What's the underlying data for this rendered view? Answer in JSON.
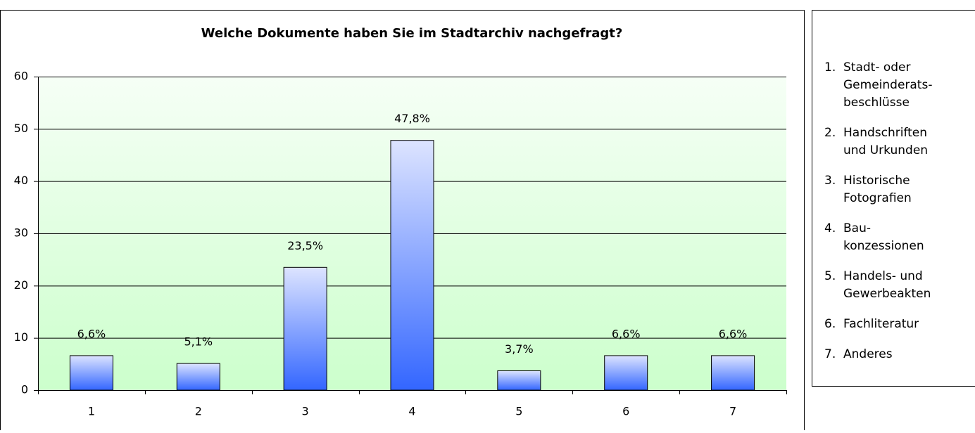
{
  "chart_data": {
    "type": "bar",
    "title": "Welche Dokumente haben Sie im Stadtarchiv nachgefragt?",
    "categories": [
      "1",
      "2",
      "3",
      "4",
      "5",
      "6",
      "7"
    ],
    "values": [
      6.6,
      5.1,
      23.5,
      47.8,
      3.7,
      6.6,
      6.6
    ],
    "value_labels": [
      "6,6%",
      "5,1%",
      "23,5%",
      "47,8%",
      "3,7%",
      "6,6%",
      "6,6%"
    ],
    "color": "#3366ff",
    "ylim": [
      0,
      60
    ],
    "yticks": [
      0,
      10,
      20,
      30,
      40,
      50,
      60
    ],
    "grid": true,
    "legend": [
      {
        "number": "1.",
        "lines": [
          "Stadt- oder",
          "Gemeinderats-",
          "beschlüsse"
        ]
      },
      {
        "number": "2.",
        "lines": [
          "Handschriften",
          "und Urkunden"
        ]
      },
      {
        "number": "3.",
        "lines": [
          "Historische",
          "Fotografien"
        ]
      },
      {
        "number": "4.",
        "lines": [
          "Bau-",
          "konzessionen"
        ]
      },
      {
        "number": "5.",
        "lines": [
          "Handels- und",
          "Gewerbeakten"
        ]
      },
      {
        "number": "6.",
        "lines": [
          "Fachliteratur"
        ]
      },
      {
        "number": "7.",
        "lines": [
          "Anderes"
        ]
      }
    ]
  }
}
